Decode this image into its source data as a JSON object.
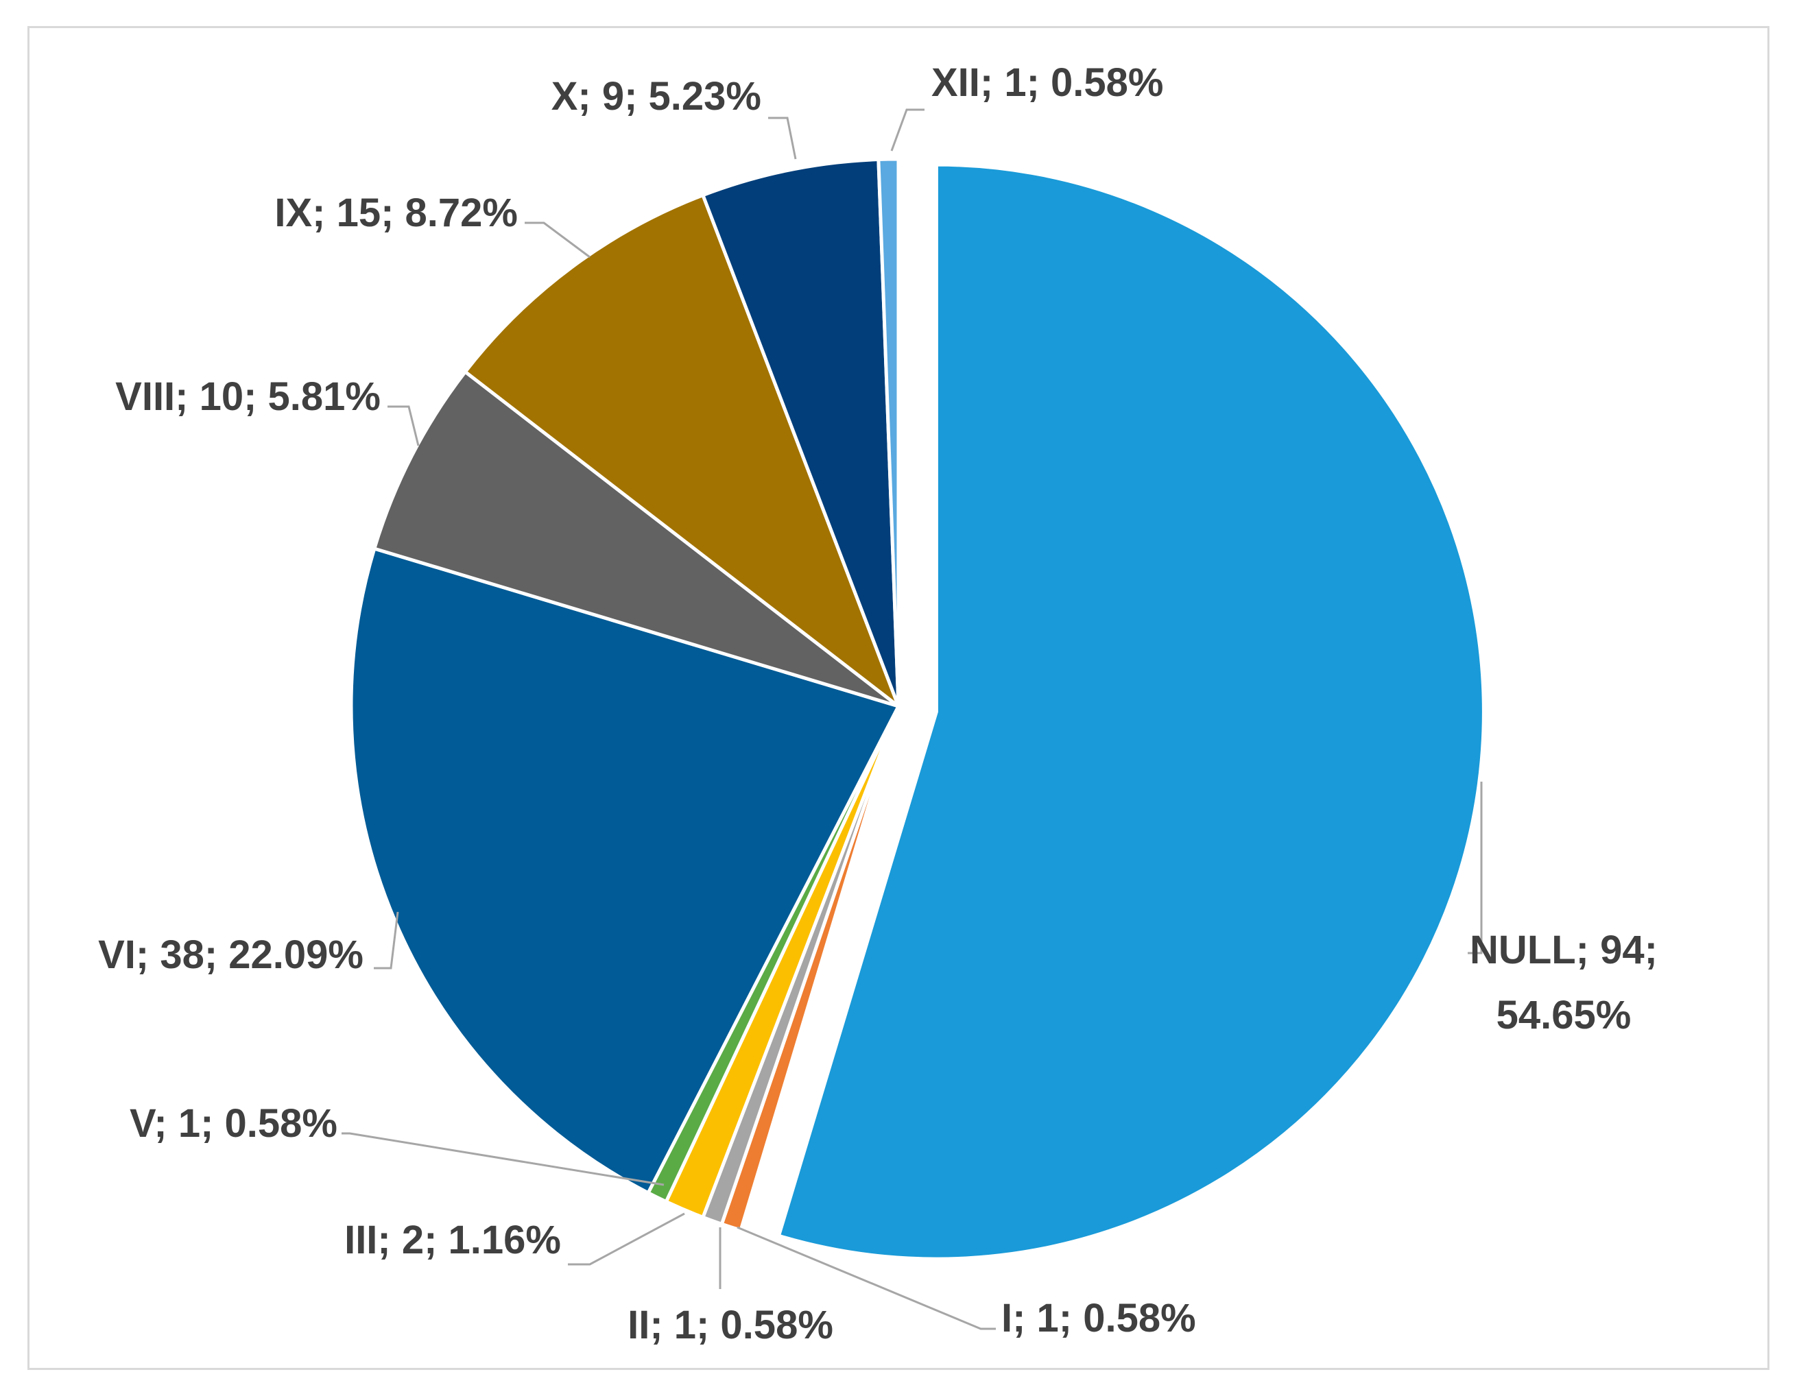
{
  "chart_data": {
    "type": "pie",
    "categories": [
      "NULL",
      "I",
      "II",
      "III",
      "V",
      "VI",
      "VIII",
      "IX",
      "X",
      "XII"
    ],
    "values": [
      94,
      1,
      1,
      2,
      1,
      38,
      10,
      15,
      9,
      1
    ],
    "percentages": [
      "54.65%",
      "0.58%",
      "0.58%",
      "1.16%",
      "0.58%",
      "22.09%",
      "5.81%",
      "8.72%",
      "5.23%",
      "0.58%"
    ],
    "colors": [
      "#1a9ad8",
      "#ee7d31",
      "#a5a5a5",
      "#fcbf00",
      "#5aab46",
      "#005b96",
      "#626262",
      "#a27300",
      "#013e7a",
      "#5aa9e0"
    ],
    "exploded": "NULL",
    "legend": "none",
    "labels": [
      {
        "lines": [
          "NULL; 94;",
          "54.65%"
        ]
      },
      {
        "lines": [
          "I; 1; 0.58%"
        ]
      },
      {
        "lines": [
          "II; 1; 0.58%"
        ]
      },
      {
        "lines": [
          "III; 2; 1.16%"
        ]
      },
      {
        "lines": [
          "V; 1; 0.58%"
        ]
      },
      {
        "lines": [
          "VI; 38; 22.09%"
        ]
      },
      {
        "lines": [
          "VIII; 10; 5.81%"
        ]
      },
      {
        "lines": [
          "IX; 15; 8.72%"
        ]
      },
      {
        "lines": [
          "X; 9; 5.23%"
        ]
      },
      {
        "lines": [
          "XII; 1; 0.58%"
        ]
      }
    ]
  }
}
